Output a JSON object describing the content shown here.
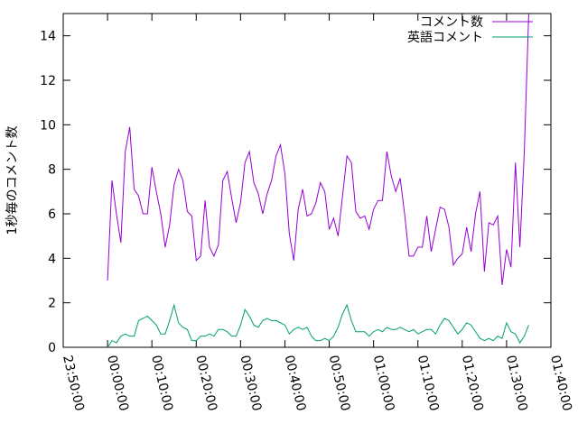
{
  "chart_data": {
    "type": "line",
    "ylabel": "1秒毎のコメント数",
    "x": [
      0,
      1,
      2,
      3,
      4,
      5,
      6,
      7,
      8,
      9,
      10,
      11,
      12,
      13,
      14,
      15,
      16,
      17,
      18,
      19,
      20,
      21,
      22,
      23,
      24,
      25,
      26,
      27,
      28,
      29,
      30,
      31,
      32,
      33,
      34,
      35,
      36,
      37,
      38,
      39,
      40,
      41,
      42,
      43,
      44,
      45,
      46,
      47,
      48,
      49,
      50,
      51,
      52,
      53,
      54,
      55,
      56,
      57,
      58,
      59,
      60,
      61,
      62,
      63,
      64,
      65,
      66,
      67,
      68,
      69,
      70,
      71,
      72,
      73,
      74,
      75,
      76,
      77,
      78,
      79,
      80,
      81,
      82,
      83,
      84,
      85,
      86,
      87,
      88,
      89,
      90,
      91,
      92,
      93,
      94,
      95
    ],
    "series": [
      {
        "name": "コメント数",
        "color": "#9400d3",
        "values": [
          3.0,
          7.5,
          6.0,
          4.7,
          8.8,
          9.9,
          7.1,
          6.8,
          6.0,
          6.0,
          8.1,
          7.0,
          6.0,
          4.5,
          5.5,
          7.3,
          8.0,
          7.5,
          6.1,
          5.9,
          3.9,
          4.1,
          6.6,
          4.5,
          4.1,
          4.6,
          7.5,
          7.9,
          6.7,
          5.6,
          6.5,
          8.3,
          8.8,
          7.4,
          6.9,
          6.0,
          6.9,
          7.5,
          8.6,
          9.1,
          7.8,
          5.1,
          3.9,
          6.2,
          7.1,
          5.9,
          6.0,
          6.5,
          7.4,
          7.0,
          5.3,
          5.8,
          5.0,
          6.8,
          8.6,
          8.3,
          6.1,
          5.8,
          5.9,
          5.3,
          6.2,
          6.6,
          6.6,
          8.8,
          7.7,
          7.0,
          7.6,
          6.0,
          4.1,
          4.1,
          4.5,
          4.5,
          5.9,
          4.3,
          5.3,
          6.3,
          6.2,
          5.4,
          3.7,
          4.0,
          4.2,
          5.4,
          4.3,
          6.0,
          7.0,
          3.4,
          5.6,
          5.5,
          5.9,
          2.8,
          4.4,
          3.6,
          8.3,
          4.5,
          8.8,
          15.0
        ]
      },
      {
        "name": "英語コメント",
        "color": "#009e73",
        "values": [
          0.0,
          0.3,
          0.2,
          0.5,
          0.6,
          0.5,
          0.5,
          1.2,
          1.3,
          1.4,
          1.2,
          1.0,
          0.6,
          0.6,
          1.2,
          1.9,
          1.1,
          0.9,
          0.8,
          0.3,
          0.3,
          0.5,
          0.5,
          0.6,
          0.5,
          0.8,
          0.8,
          0.7,
          0.5,
          0.5,
          1.0,
          1.7,
          1.4,
          1.0,
          0.9,
          1.2,
          1.3,
          1.2,
          1.2,
          1.1,
          1.0,
          0.6,
          0.8,
          0.9,
          0.8,
          0.9,
          0.5,
          0.3,
          0.3,
          0.4,
          0.3,
          0.5,
          0.9,
          1.5,
          1.9,
          1.2,
          0.7,
          0.7,
          0.7,
          0.5,
          0.7,
          0.8,
          0.7,
          0.9,
          0.8,
          0.8,
          0.9,
          0.8,
          0.7,
          0.8,
          0.6,
          0.7,
          0.8,
          0.8,
          0.6,
          1.0,
          1.3,
          1.2,
          0.9,
          0.6,
          0.8,
          1.1,
          1.0,
          0.7,
          0.4,
          0.3,
          0.4,
          0.3,
          0.5,
          0.4,
          1.1,
          0.7,
          0.6,
          0.2,
          0.5,
          1.0
        ]
      }
    ],
    "xlim": [
      -10,
      100
    ],
    "xticks": [
      {
        "value": -10,
        "label": "23:50:00"
      },
      {
        "value": 0,
        "label": "00:00:00"
      },
      {
        "value": 10,
        "label": "00:10:00"
      },
      {
        "value": 20,
        "label": "00:20:00"
      },
      {
        "value": 30,
        "label": "00:30:00"
      },
      {
        "value": 40,
        "label": "00:40:00"
      },
      {
        "value": 50,
        "label": "00:50:00"
      },
      {
        "value": 60,
        "label": "01:00:00"
      },
      {
        "value": 70,
        "label": "01:10:00"
      },
      {
        "value": 80,
        "label": "01:20:00"
      },
      {
        "value": 90,
        "label": "01:30:00"
      },
      {
        "value": 100,
        "label": "01:40:00"
      }
    ],
    "ylim": [
      0,
      15
    ],
    "yticks": [
      0,
      2,
      4,
      6,
      8,
      10,
      12,
      14
    ],
    "legend": "top-right"
  }
}
